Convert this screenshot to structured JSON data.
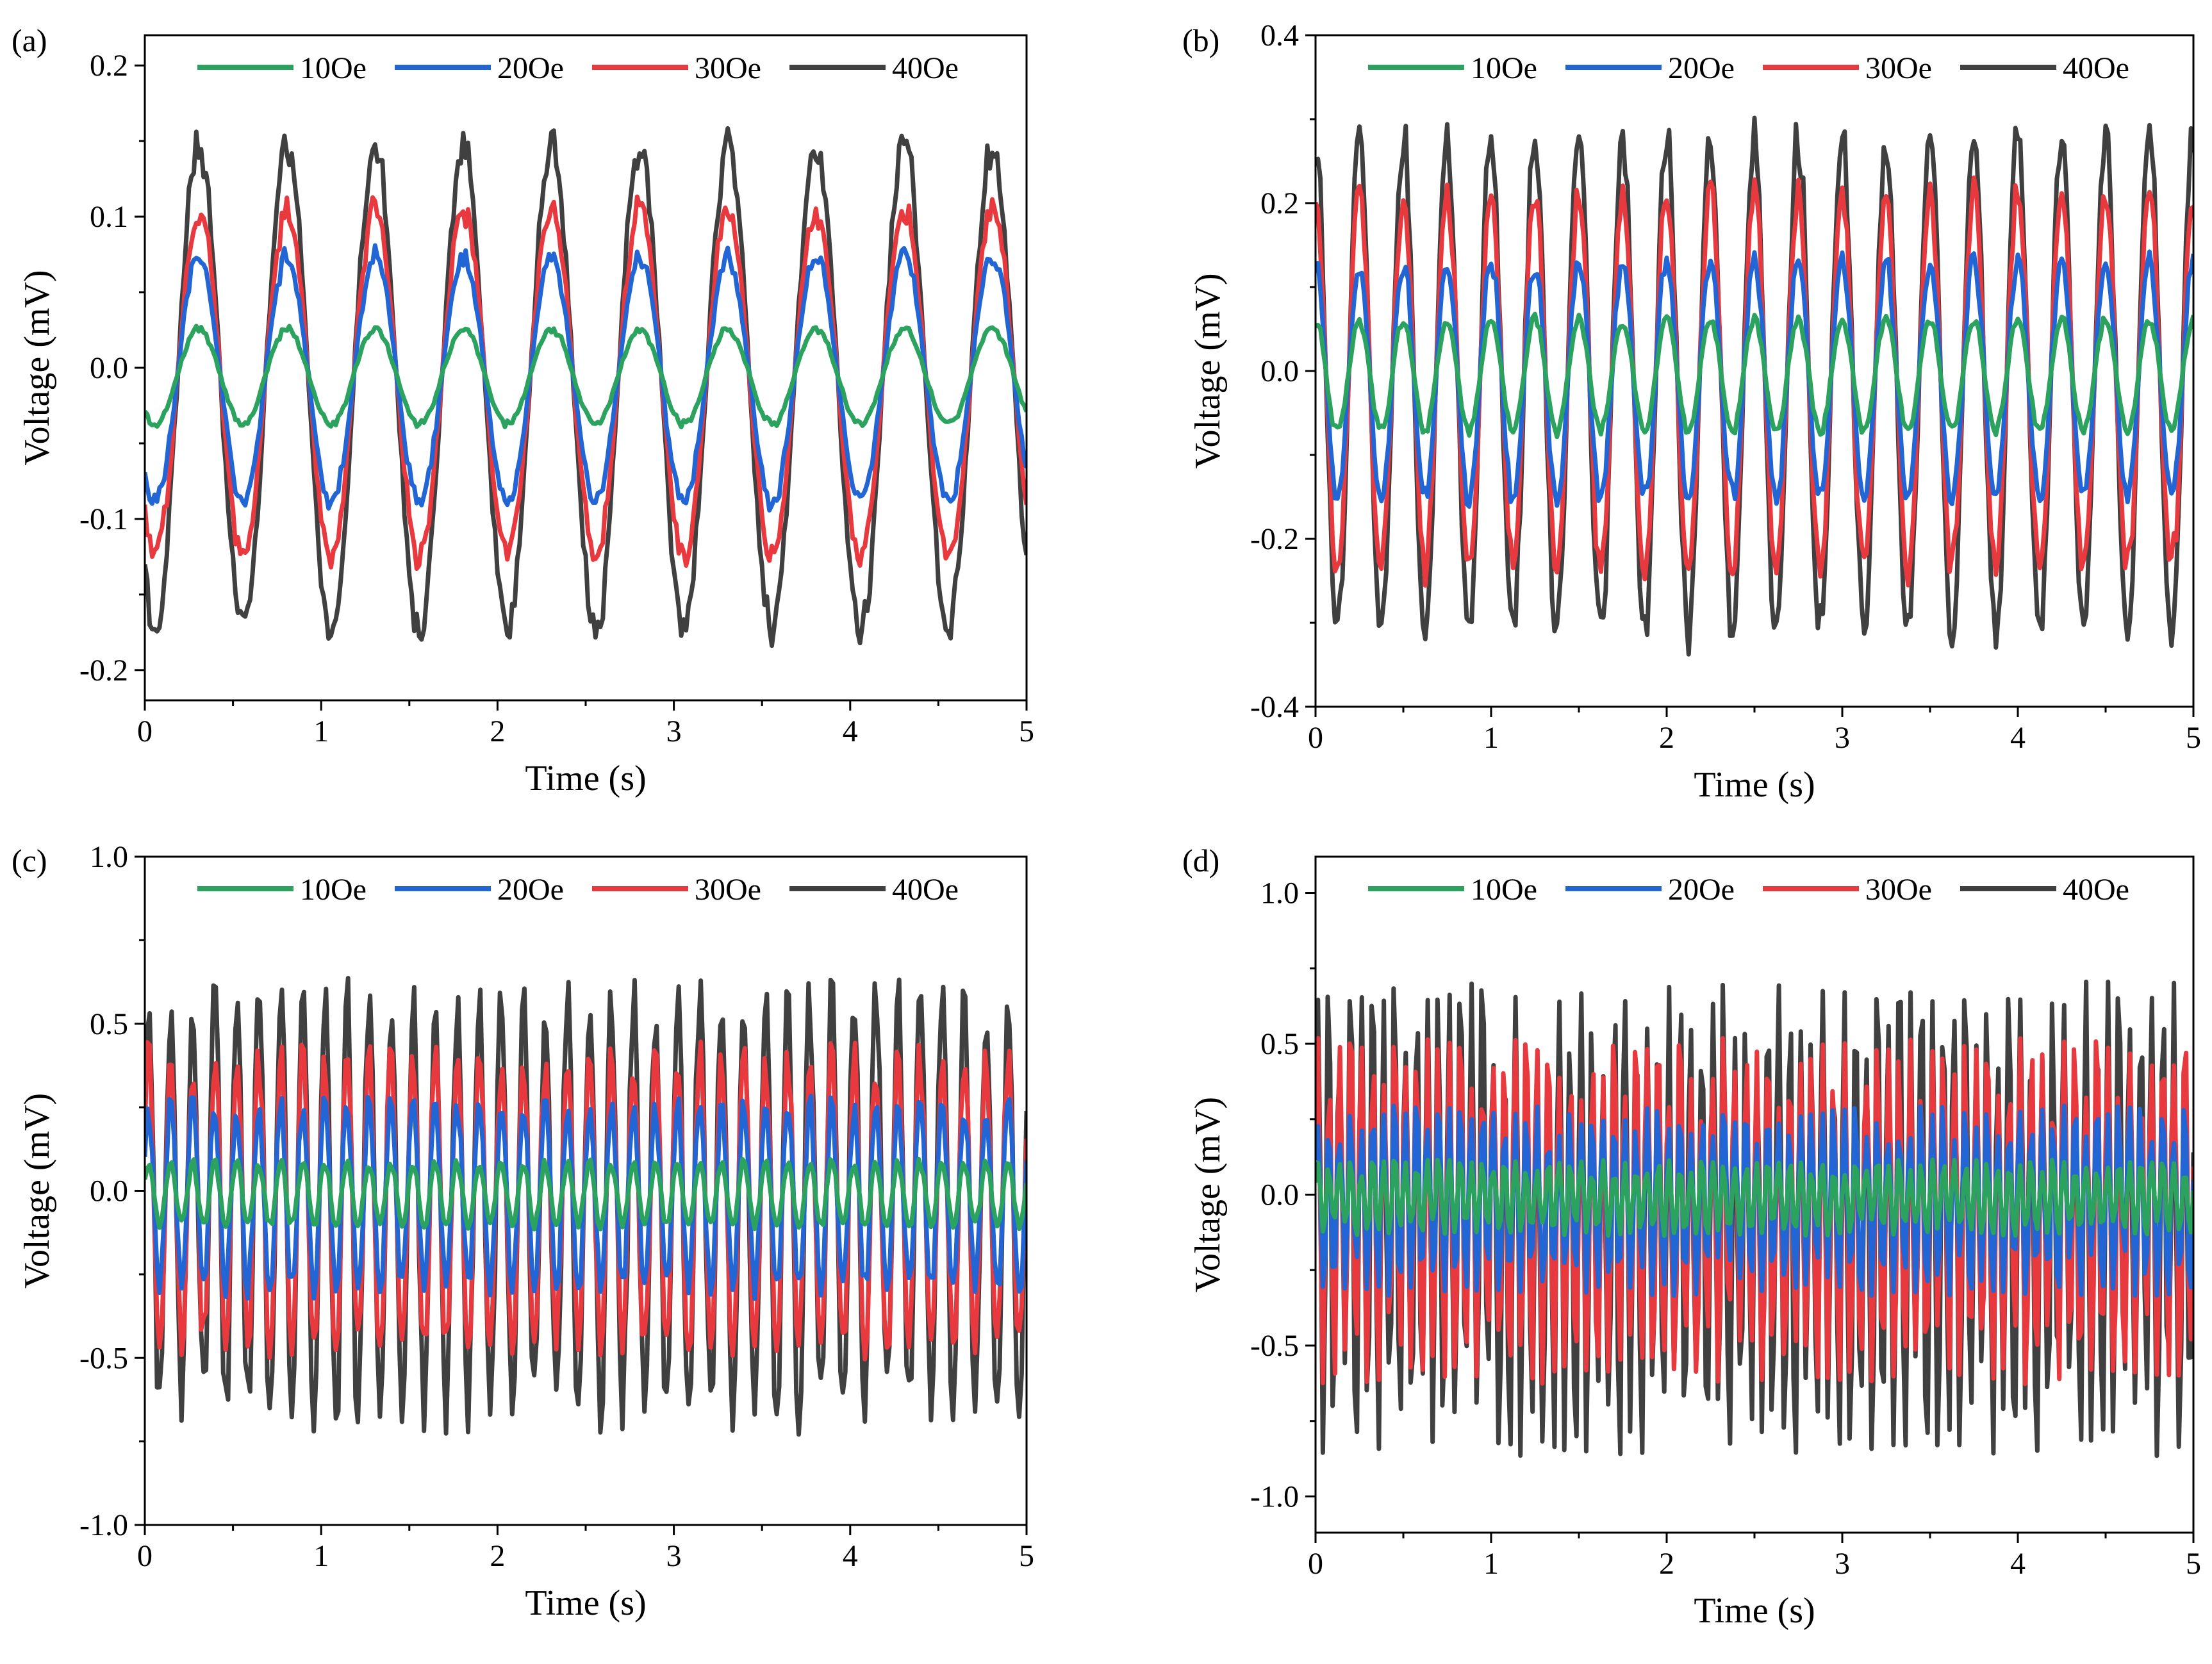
{
  "figure": {
    "series_styles": [
      {
        "name": "10Oe",
        "color": "#2ca25f"
      },
      {
        "name": "20Oe",
        "color": "#2166d4"
      },
      {
        "name": "30Oe",
        "color": "#e8393f"
      },
      {
        "name": "40Oe",
        "color": "#404040"
      }
    ]
  },
  "chart_data": [
    {
      "panel": "(a)",
      "type": "line",
      "xlabel": "Time (s)",
      "ylabel": "Voltage (mV)",
      "xlim": [
        0,
        5
      ],
      "ylim": [
        -0.22,
        0.22
      ],
      "xticks": [
        0,
        1,
        2,
        3,
        4,
        5
      ],
      "xtick_labels": [
        "0",
        "1",
        "2",
        "3",
        "4",
        "5"
      ],
      "yticks": [
        -0.2,
        -0.1,
        0.0,
        0.1,
        0.2
      ],
      "ytick_labels": [
        "-0.2",
        "-0.1",
        "0.0",
        "0.1",
        "0.2"
      ],
      "legend": [
        "10Oe",
        "20Oe",
        "30Oe",
        "40Oe"
      ],
      "legend_position": "top",
      "frequency_hz": 2,
      "phase": 4.0,
      "noise": 0.05,
      "series": [
        {
          "name": "10Oe",
          "amplitude": 0.033,
          "offset": -0.006
        },
        {
          "name": "20Oe",
          "amplitude": 0.085,
          "offset": -0.008
        },
        {
          "name": "30Oe",
          "amplitude": 0.12,
          "offset": -0.01
        },
        {
          "name": "40Oe",
          "amplitude": 0.168,
          "offset": -0.013
        }
      ]
    },
    {
      "panel": "(b)",
      "type": "line",
      "xlabel": "Time (s)",
      "ylabel": "Voltage (mV)",
      "xlim": [
        0,
        5
      ],
      "ylim": [
        -0.4,
        0.4
      ],
      "xticks": [
        0,
        1,
        2,
        3,
        4,
        5
      ],
      "xtick_labels": [
        "0",
        "1",
        "2",
        "3",
        "4",
        "5"
      ],
      "yticks": [
        -0.4,
        -0.2,
        0.0,
        0.2,
        0.4
      ],
      "ytick_labels": [
        "-0.4",
        "-0.2",
        "0.0",
        "0.2",
        "0.4"
      ],
      "legend": [
        "10Oe",
        "20Oe",
        "30Oe",
        "40Oe"
      ],
      "legend_position": "top",
      "frequency_hz": 4,
      "phase": 1.6,
      "noise": 0.08,
      "series": [
        {
          "name": "10Oe",
          "amplitude": 0.07,
          "offset": -0.005
        },
        {
          "name": "20Oe",
          "amplitude": 0.148,
          "offset": -0.01
        },
        {
          "name": "30Oe",
          "amplitude": 0.235,
          "offset": -0.012
        },
        {
          "name": "40Oe",
          "amplitude": 0.31,
          "offset": -0.015
        }
      ]
    },
    {
      "panel": "(c)",
      "type": "line",
      "xlabel": "Time (s)",
      "ylabel": "Voltage (mV)",
      "xlim": [
        0,
        5
      ],
      "ylim": [
        -1.0,
        1.0
      ],
      "xticks": [
        0,
        1,
        2,
        3,
        4,
        5
      ],
      "xtick_labels": [
        "0",
        "1",
        "2",
        "3",
        "4",
        "5"
      ],
      "yticks": [
        -1.0,
        -0.5,
        0.0,
        0.5,
        1.0
      ],
      "ytick_labels": [
        "-1.0",
        "-0.5",
        "0.0",
        "0.5",
        "1.0"
      ],
      "legend": [
        "10Oe",
        "20Oe",
        "30Oe",
        "40Oe"
      ],
      "legend_position": "top",
      "frequency_hz": 8,
      "phase": 0.5,
      "noise": 0.18,
      "series": [
        {
          "name": "10Oe",
          "amplitude": 0.1,
          "offset": -0.01
        },
        {
          "name": "20Oe",
          "amplitude": 0.29,
          "offset": -0.02
        },
        {
          "name": "30Oe",
          "amplitude": 0.46,
          "offset": -0.03
        },
        {
          "name": "40Oe",
          "amplitude": 0.66,
          "offset": -0.04
        }
      ]
    },
    {
      "panel": "(d)",
      "type": "line",
      "xlabel": "Time (s)",
      "ylabel": "Voltage (mV)",
      "xlim": [
        0,
        5
      ],
      "ylim": [
        -1.12,
        1.12
      ],
      "xticks": [
        0,
        1,
        2,
        3,
        4,
        5
      ],
      "xtick_labels": [
        "0",
        "1",
        "2",
        "3",
        "4",
        "5"
      ],
      "yticks": [
        -1.0,
        -0.5,
        0.0,
        0.5,
        1.0
      ],
      "ytick_labels": [
        "-1.0",
        "-0.5",
        "0.0",
        "0.5",
        "1.0"
      ],
      "legend": [
        "10Oe",
        "20Oe",
        "30Oe",
        "40Oe"
      ],
      "legend_position": "top",
      "frequency_hz": 16,
      "phase": 0.3,
      "noise": 0.35,
      "series": [
        {
          "name": "10Oe",
          "amplitude": 0.12,
          "offset": -0.01
        },
        {
          "name": "20Oe",
          "amplitude": 0.3,
          "offset": -0.02
        },
        {
          "name": "30Oe",
          "amplitude": 0.55,
          "offset": -0.05
        },
        {
          "name": "40Oe",
          "amplitude": 0.75,
          "offset": -0.08
        }
      ]
    }
  ]
}
